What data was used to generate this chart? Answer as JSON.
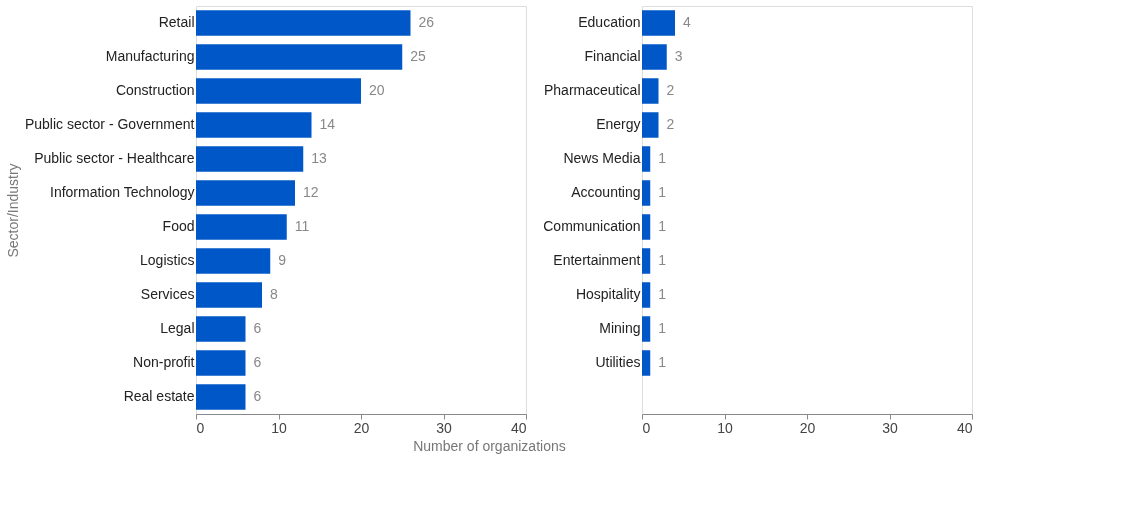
{
  "chart_data": [
    {
      "type": "bar",
      "orientation": "horizontal",
      "ylabel": "Sector/Industry",
      "xlabel": "Number of organizations",
      "categories": [
        "Retail",
        "Manufacturing",
        "Construction",
        "Public sector - Government",
        "Public sector - Healthcare",
        "Information Technology",
        "Food",
        "Logistics",
        "Services",
        "Legal",
        "Non-profit",
        "Real estate"
      ],
      "values": [
        26,
        25,
        20,
        14,
        13,
        12,
        11,
        9,
        8,
        6,
        6,
        6
      ],
      "color": "#0057c8",
      "xlim": [
        0,
        40
      ],
      "xticks": [
        0,
        10,
        20,
        30,
        40
      ],
      "data_labels": true
    },
    {
      "type": "bar",
      "orientation": "horizontal",
      "categories": [
        "Education",
        "Financial",
        "Pharmaceutical",
        "Energy",
        "News Media",
        "Accounting",
        "Communication",
        "Entertainment",
        "Hospitality",
        "Mining",
        "Utilities"
      ],
      "values": [
        4,
        3,
        2,
        2,
        1,
        1,
        1,
        1,
        1,
        1,
        1
      ],
      "color": "#0057c8",
      "xlim": [
        0,
        40
      ],
      "xticks": [
        0,
        10,
        20,
        30,
        40
      ],
      "data_labels": true
    }
  ]
}
